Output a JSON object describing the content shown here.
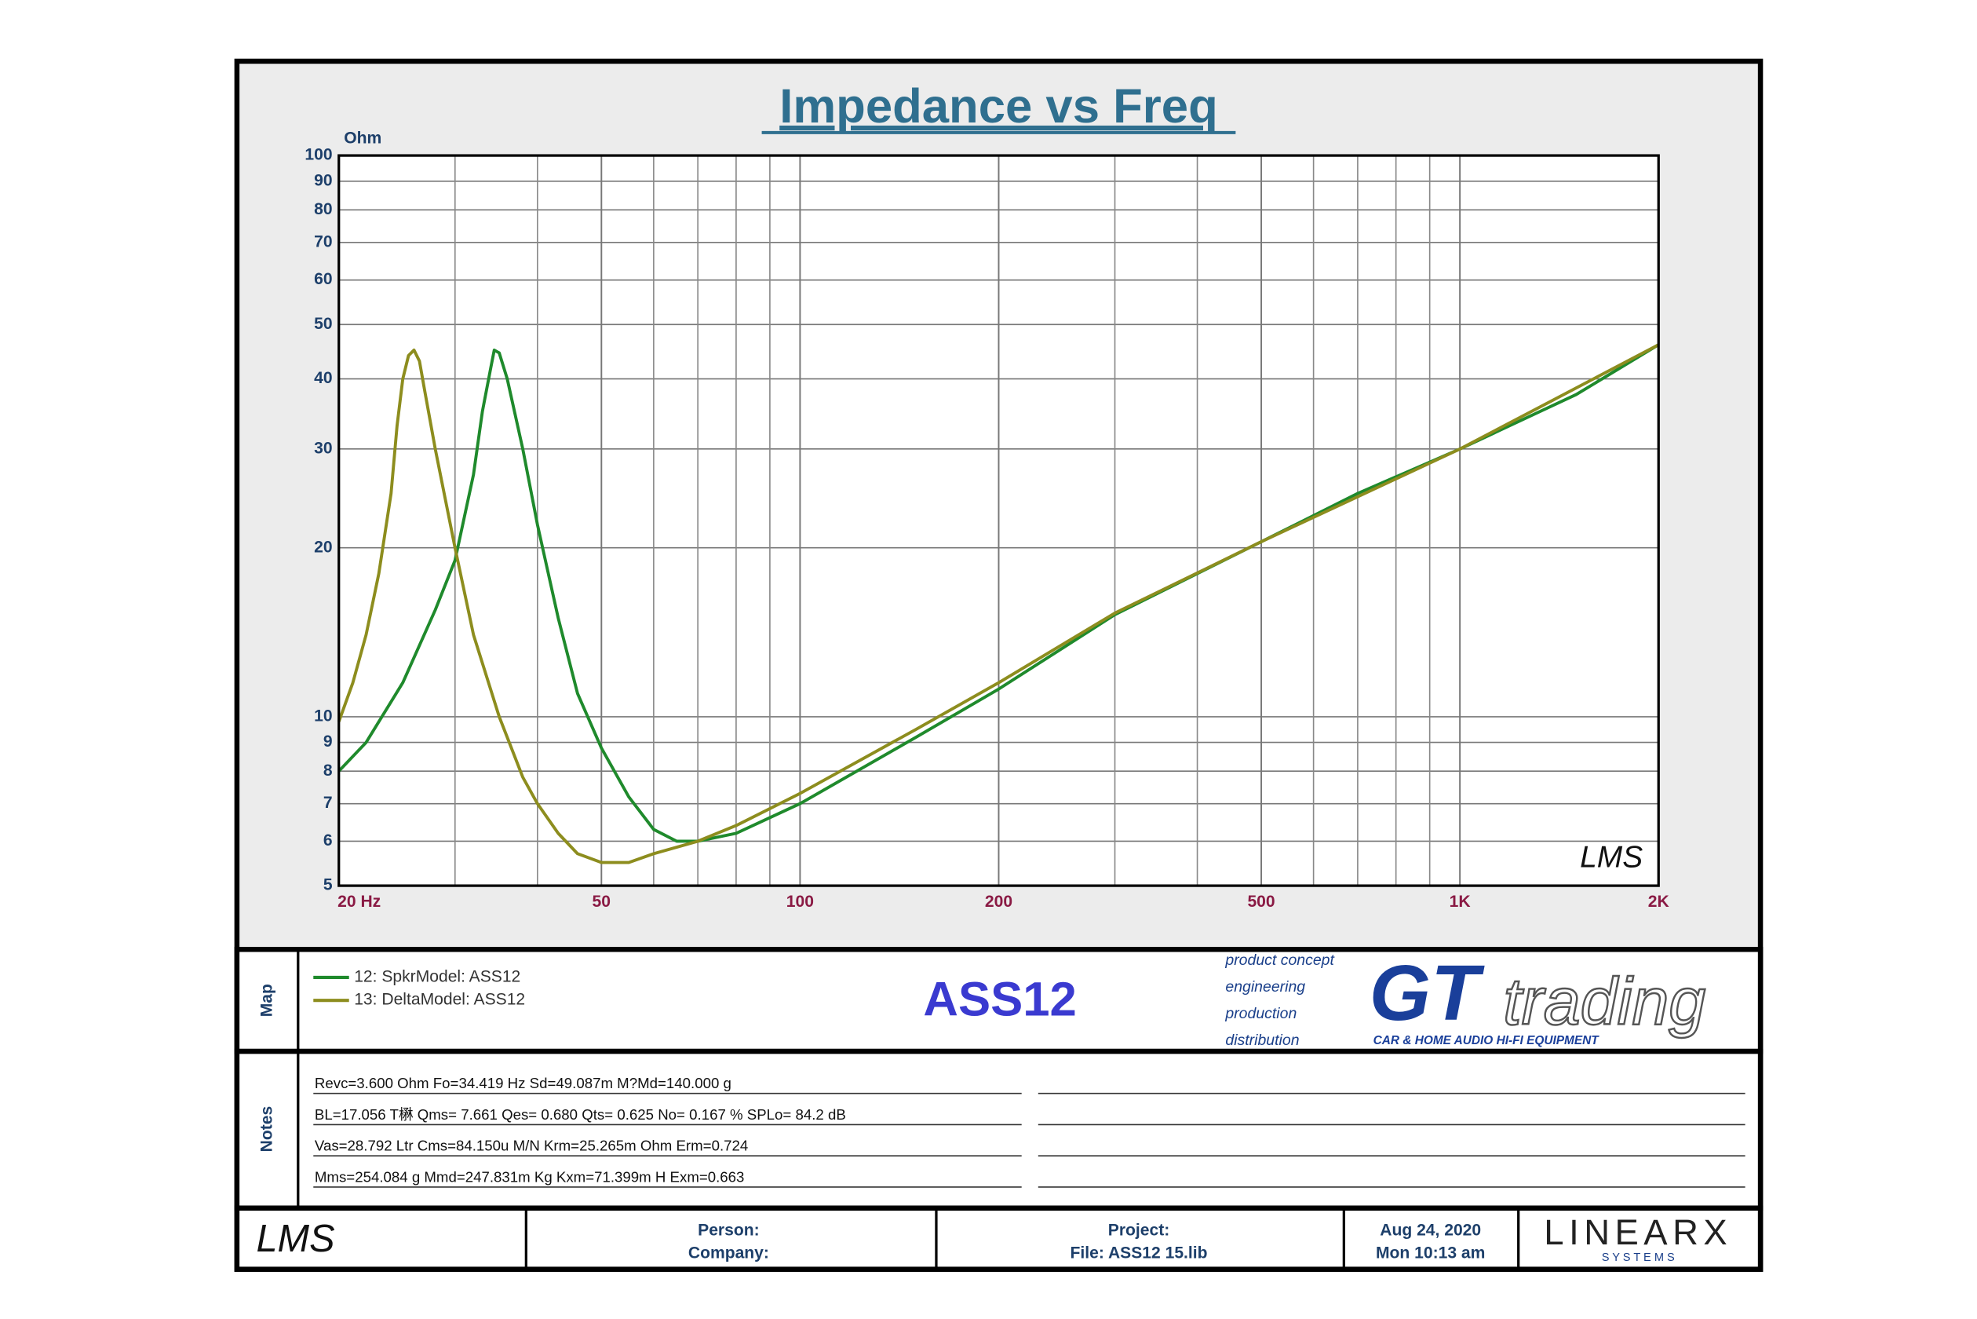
{
  "chart_data": {
    "type": "line",
    "title": "Impedance vs Freq",
    "y_label": "Ohm",
    "xlog": true,
    "ylog": true,
    "grid": true,
    "xlim": [
      20,
      2000
    ],
    "ylim": [
      5,
      100
    ],
    "xticks": [
      {
        "value": 20,
        "label": "20  Hz"
      },
      50,
      100,
      200,
      500,
      {
        "value": 1000,
        "label": "1K"
      },
      {
        "value": 2000,
        "label": "2K"
      }
    ],
    "xminor_ticks": [
      30,
      40,
      60,
      70,
      80,
      90,
      300,
      400,
      600,
      700,
      800,
      900
    ],
    "yticks": [
      5,
      6,
      7,
      8,
      9,
      10,
      20,
      30,
      40,
      50,
      60,
      70,
      80,
      90,
      100
    ],
    "series": [
      {
        "name": "12: SpkrModel: ASS12",
        "color": "#1f8a2c",
        "x": [
          20,
          22,
          25,
          28,
          30,
          32,
          33,
          34,
          34.4,
          35,
          36,
          38,
          40,
          43,
          46,
          50,
          55,
          60,
          65,
          70,
          80,
          100,
          150,
          200,
          300,
          500,
          700,
          1000,
          1500,
          2000
        ],
        "values": [
          8.0,
          9.0,
          11.5,
          15.5,
          19,
          27,
          35,
          42,
          45,
          44.5,
          40,
          30,
          22,
          15,
          11,
          8.8,
          7.2,
          6.3,
          6.0,
          6.0,
          6.2,
          7.0,
          9.2,
          11.2,
          15.2,
          20.5,
          25,
          30,
          37.5,
          46
        ]
      },
      {
        "name": "13: DeltaModel: ASS12",
        "color": "#8d8d1e",
        "x": [
          20,
          21,
          22,
          23,
          24,
          24.5,
          25,
          25.5,
          26,
          26.5,
          27,
          28,
          30,
          32,
          35,
          38,
          40,
          43,
          46,
          50,
          55,
          60,
          70,
          80,
          100,
          150,
          200,
          300,
          500,
          1000,
          2000
        ],
        "values": [
          9.8,
          11.5,
          14,
          18,
          25,
          33,
          40,
          44,
          45,
          43,
          38,
          30,
          20,
          14,
          10,
          7.8,
          7,
          6.2,
          5.7,
          5.5,
          5.5,
          5.7,
          6.0,
          6.4,
          7.3,
          9.5,
          11.5,
          15.3,
          20.5,
          30,
          46
        ]
      }
    ]
  },
  "map": {
    "label": "Map",
    "model": "ASS12"
  },
  "notes": {
    "label": "Notes",
    "lines": [
      "Revc=3.600 Ohm  Fo=34.419 Hz  Sd=49.087m M?Md=140.000 g",
      "BL=17.056 T楙  Qms= 7.661  Qes= 0.680  Qts= 0.625  No= 0.167 %  SPLo= 84.2 dB",
      "Vas=28.792 Ltr  Cms=84.150u M/N  Krm=25.265m Ohm  Erm=0.724",
      "Mms=254.084 g  Mmd=247.831m Kg  Kxm=71.399m H  Exm=0.663"
    ]
  },
  "logos": {
    "lms": "LMS",
    "gt_lines": [
      "product concept",
      "engineering",
      "production",
      "distribution"
    ],
    "gt": "GT",
    "trading": "trading",
    "gt_tag": "CAR & HOME AUDIO HI-FI EQUIPMENT",
    "linearx": "LINEARX",
    "systems": "S Y S T E M S"
  },
  "footer": {
    "person": "Person:",
    "company": "Company:",
    "project": "Project:",
    "file": "File: ASS12 15.lib",
    "date": "Aug 24, 2020",
    "time": "Mon 10:13 am"
  }
}
